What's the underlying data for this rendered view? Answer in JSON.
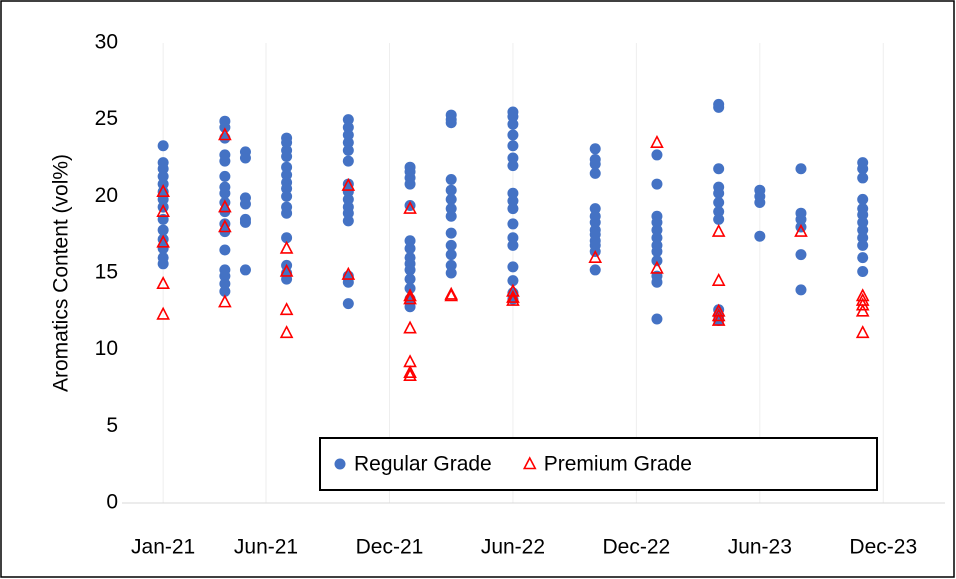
{
  "chart_data": {
    "type": "scatter",
    "y_label": "Aromatics Content (vol%)",
    "xlim": [
      "2020-11",
      "2024-03"
    ],
    "xticks": [
      {
        "value": "2021-01",
        "label": "Jan-21"
      },
      {
        "value": "2021-06",
        "label": "Jun-21"
      },
      {
        "value": "2021-12",
        "label": "Dec-21"
      },
      {
        "value": "2022-06",
        "label": "Jun-22"
      },
      {
        "value": "2022-12",
        "label": "Dec-22"
      },
      {
        "value": "2023-06",
        "label": "Jun-23"
      },
      {
        "value": "2023-12",
        "label": "Dec-23"
      }
    ],
    "ylim": [
      0,
      30
    ],
    "yticks": [
      0,
      5,
      10,
      15,
      20,
      25,
      30
    ],
    "grid": true,
    "legend": "lower right",
    "series": [
      {
        "name": "Regular Grade",
        "color": "#4472c4",
        "marker": "circle",
        "x": [
          "2021-01",
          "2021-01",
          "2021-01",
          "2021-01",
          "2021-01",
          "2021-01",
          "2021-01",
          "2021-01",
          "2021-01",
          "2021-01",
          "2021-01",
          "2021-01",
          "2021-01",
          "2021-01",
          "2021-04",
          "2021-04",
          "2021-04",
          "2021-04",
          "2021-04",
          "2021-04",
          "2021-04",
          "2021-04",
          "2021-04",
          "2021-04",
          "2021-04",
          "2021-04",
          "2021-04",
          "2021-04",
          "2021-04",
          "2021-04",
          "2021-04",
          "2021-05",
          "2021-05",
          "2021-05",
          "2021-05",
          "2021-05",
          "2021-05",
          "2021-05",
          "2021-07",
          "2021-07",
          "2021-07",
          "2021-07",
          "2021-07",
          "2021-07",
          "2021-07",
          "2021-07",
          "2021-07",
          "2021-07",
          "2021-07",
          "2021-07",
          "2021-07",
          "2021-07",
          "2021-07",
          "2021-10",
          "2021-10",
          "2021-10",
          "2021-10",
          "2021-10",
          "2021-10",
          "2021-10",
          "2021-10",
          "2021-10",
          "2021-10",
          "2021-10",
          "2021-10",
          "2021-10",
          "2021-10",
          "2021-10",
          "2022-01",
          "2022-01",
          "2022-01",
          "2022-01",
          "2022-01",
          "2022-01",
          "2022-01",
          "2022-01",
          "2022-01",
          "2022-01",
          "2022-01",
          "2022-01",
          "2022-01",
          "2022-01",
          "2022-03",
          "2022-03",
          "2022-03",
          "2022-03",
          "2022-03",
          "2022-03",
          "2022-03",
          "2022-03",
          "2022-03",
          "2022-03",
          "2022-03",
          "2022-03",
          "2022-03",
          "2022-06",
          "2022-06",
          "2022-06",
          "2022-06",
          "2022-06",
          "2022-06",
          "2022-06",
          "2022-06",
          "2022-06",
          "2022-06",
          "2022-06",
          "2022-06",
          "2022-06",
          "2022-06",
          "2022-06",
          "2022-06",
          "2022-06",
          "2022-10",
          "2022-10",
          "2022-10",
          "2022-10",
          "2022-10",
          "2022-10",
          "2022-10",
          "2022-10",
          "2022-10",
          "2022-10",
          "2022-10",
          "2022-10",
          "2022-10",
          "2023-01",
          "2023-01",
          "2023-01",
          "2023-01",
          "2023-01",
          "2023-01",
          "2023-01",
          "2023-01",
          "2023-01",
          "2023-01",
          "2023-01",
          "2023-01",
          "2023-04",
          "2023-04",
          "2023-04",
          "2023-04",
          "2023-04",
          "2023-04",
          "2023-04",
          "2023-04",
          "2023-04",
          "2023-04",
          "2023-04",
          "2023-06",
          "2023-06",
          "2023-06",
          "2023-06",
          "2023-08",
          "2023-08",
          "2023-08",
          "2023-08",
          "2023-08",
          "2023-08",
          "2023-11",
          "2023-11",
          "2023-11",
          "2023-11",
          "2023-11",
          "2023-11",
          "2023-11",
          "2023-11",
          "2023-11",
          "2023-11",
          "2023-11",
          "2023-11"
        ],
        "values": [
          23.3,
          22.2,
          21.8,
          21.3,
          20.8,
          20.3,
          19.8,
          19.3,
          18.5,
          17.8,
          17.2,
          16.6,
          16.0,
          15.6,
          24.9,
          24.5,
          23.8,
          22.7,
          22.3,
          21.3,
          20.6,
          20.2,
          19.6,
          19.0,
          18.2,
          17.7,
          16.5,
          15.2,
          14.8,
          14.3,
          13.8,
          22.9,
          22.5,
          19.9,
          19.5,
          18.5,
          18.3,
          15.2,
          23.8,
          23.5,
          23.0,
          22.6,
          21.9,
          21.4,
          20.9,
          20.5,
          20.0,
          19.3,
          18.9,
          17.3,
          15.5,
          15.0,
          14.6,
          25.0,
          24.5,
          24.0,
          23.5,
          23.0,
          22.3,
          20.8,
          20.3,
          19.8,
          19.3,
          18.9,
          18.4,
          14.8,
          14.4,
          13.0,
          21.9,
          21.6,
          21.2,
          20.8,
          19.4,
          17.1,
          16.6,
          16.0,
          15.6,
          15.2,
          14.6,
          14.0,
          13.3,
          12.8,
          25.3,
          25.0,
          24.8,
          21.1,
          20.4,
          19.8,
          19.2,
          18.7,
          17.6,
          16.8,
          16.2,
          15.5,
          15.0,
          25.5,
          25.2,
          24.7,
          24.0,
          23.3,
          22.5,
          22.0,
          20.2,
          19.7,
          19.2,
          18.2,
          17.3,
          16.8,
          15.4,
          14.5,
          13.7,
          13.3,
          23.1,
          22.4,
          22.1,
          21.5,
          19.2,
          18.7,
          18.3,
          17.8,
          17.5,
          17.1,
          16.8,
          16.4,
          15.2,
          22.7,
          20.8,
          18.7,
          18.3,
          17.8,
          17.3,
          16.8,
          16.4,
          15.8,
          14.8,
          14.4,
          12.0,
          26.0,
          25.8,
          21.8,
          20.6,
          20.2,
          19.6,
          19.0,
          18.5,
          12.6,
          12.2,
          11.9,
          20.4,
          20.0,
          19.6,
          17.4,
          21.8,
          18.9,
          18.5,
          18.0,
          16.2,
          13.9,
          22.2,
          21.8,
          21.2,
          19.8,
          19.2,
          18.8,
          18.3,
          17.8,
          17.3,
          16.8,
          16.0,
          15.1
        ]
      },
      {
        "name": "Premium Grade",
        "color": "#ff0000",
        "marker": "triangle",
        "x": [
          "2021-01",
          "2021-01",
          "2021-01",
          "2021-01",
          "2021-01",
          "2021-04",
          "2021-04",
          "2021-04",
          "2021-04",
          "2021-07",
          "2021-07",
          "2021-07",
          "2021-07",
          "2021-10",
          "2021-10",
          "2022-01",
          "2022-01",
          "2022-01",
          "2022-01",
          "2022-01",
          "2022-01",
          "2022-01",
          "2022-03",
          "2022-03",
          "2022-06",
          "2022-06",
          "2022-06",
          "2022-10",
          "2023-01",
          "2023-01",
          "2023-04",
          "2023-04",
          "2023-04",
          "2023-04",
          "2023-04",
          "2023-08",
          "2023-11",
          "2023-11",
          "2023-11",
          "2023-11",
          "2023-11"
        ],
        "values": [
          20.3,
          19.0,
          17.0,
          14.3,
          12.3,
          24.0,
          19.3,
          18.0,
          13.1,
          16.6,
          15.1,
          12.6,
          11.1,
          20.7,
          14.9,
          19.2,
          13.5,
          13.3,
          11.4,
          9.2,
          8.5,
          8.3,
          13.5,
          13.6,
          13.8,
          13.4,
          13.2,
          16.0,
          23.5,
          15.3,
          17.7,
          14.5,
          12.5,
          12.2,
          11.9,
          17.7,
          13.5,
          13.2,
          12.9,
          12.5,
          11.1
        ]
      }
    ]
  }
}
